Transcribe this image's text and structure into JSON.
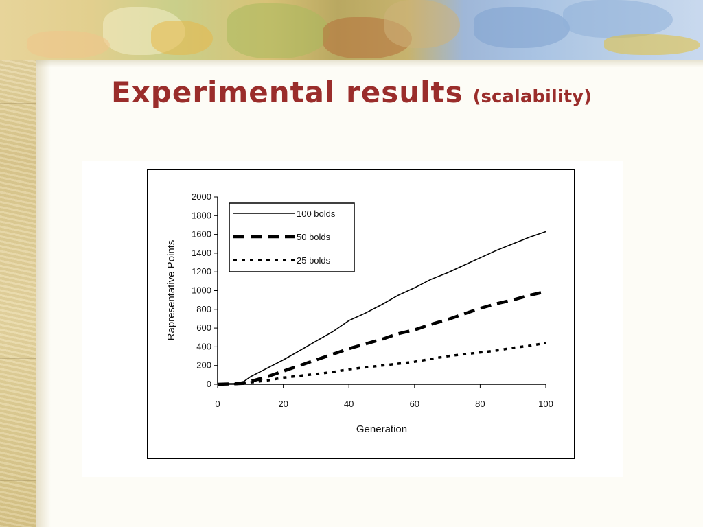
{
  "slide": {
    "title_main": "Experimental results",
    "title_sub": "(scalability)"
  },
  "chart_data": {
    "type": "line",
    "title": "",
    "xlabel": "Generation",
    "ylabel": "Rapresentative Points",
    "xlim": [
      0,
      100
    ],
    "ylim": [
      0,
      2000
    ],
    "x_ticks": [
      0,
      20,
      40,
      60,
      80,
      100
    ],
    "y_ticks": [
      0,
      200,
      400,
      600,
      800,
      1000,
      1200,
      1400,
      1600,
      1800,
      2000
    ],
    "grid": false,
    "legend_position": "top-left",
    "x": [
      0,
      5,
      8,
      10,
      15,
      20,
      25,
      30,
      35,
      40,
      45,
      50,
      55,
      60,
      65,
      70,
      75,
      80,
      85,
      90,
      95,
      100
    ],
    "series": [
      {
        "name": "100 bolds",
        "style": "solid",
        "color": "#000000",
        "values": [
          5,
          8,
          30,
          80,
          170,
          260,
          360,
          460,
          560,
          680,
          760,
          850,
          950,
          1030,
          1120,
          1190,
          1270,
          1350,
          1430,
          1500,
          1570,
          1630
        ]
      },
      {
        "name": "50 bolds",
        "style": "long-dash",
        "color": "#000000",
        "values": [
          0,
          5,
          10,
          30,
          80,
          140,
          200,
          260,
          320,
          380,
          430,
          480,
          540,
          580,
          640,
          690,
          750,
          810,
          860,
          900,
          950,
          990
        ]
      },
      {
        "name": "25 bolds",
        "style": "dotted",
        "color": "#000000",
        "values": [
          0,
          3,
          8,
          20,
          40,
          70,
          90,
          110,
          130,
          160,
          180,
          200,
          220,
          240,
          270,
          300,
          320,
          340,
          360,
          390,
          410,
          440
        ]
      }
    ]
  }
}
